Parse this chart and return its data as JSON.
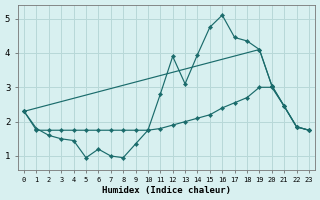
{
  "xlabel": "Humidex (Indice chaleur)",
  "bg_color": "#d8f0f0",
  "grid_color": "#b8d8d8",
  "line_color": "#1a6b6b",
  "xlim": [
    -0.5,
    23.5
  ],
  "ylim": [
    0.6,
    5.4
  ],
  "xticks": [
    0,
    1,
    2,
    3,
    4,
    5,
    6,
    7,
    8,
    9,
    10,
    11,
    12,
    13,
    14,
    15,
    16,
    17,
    18,
    19,
    20,
    21,
    22,
    23
  ],
  "yticks": [
    1,
    2,
    3,
    4,
    5
  ],
  "line1_x": [
    0,
    1,
    2,
    3,
    4,
    5,
    6,
    7,
    8,
    9,
    10,
    11,
    12,
    13,
    14,
    15,
    16,
    17,
    18,
    19,
    20,
    21,
    22,
    23
  ],
  "line1_y": [
    2.3,
    1.8,
    1.6,
    1.5,
    1.45,
    0.95,
    1.2,
    1.0,
    0.95,
    1.35,
    1.75,
    2.8,
    3.9,
    3.1,
    3.95,
    4.75,
    5.1,
    4.45,
    4.35,
    4.1,
    3.05,
    2.45,
    1.85,
    1.75
  ],
  "line2_x": [
    0,
    1,
    2,
    3,
    4,
    5,
    6,
    7,
    8,
    9,
    10,
    11,
    12,
    13,
    14,
    15,
    16,
    17,
    18,
    19,
    20,
    21,
    22,
    23
  ],
  "line2_y": [
    2.3,
    1.75,
    1.75,
    1.75,
    1.75,
    1.75,
    1.75,
    1.75,
    1.75,
    1.75,
    1.75,
    1.8,
    1.9,
    2.0,
    2.1,
    2.2,
    2.4,
    2.55,
    2.7,
    3.0,
    3.0,
    2.45,
    1.85,
    1.75
  ],
  "line3_x": [
    0,
    19,
    20,
    21,
    22,
    23
  ],
  "line3_y": [
    2.3,
    4.1,
    3.05,
    2.45,
    1.85,
    1.75
  ]
}
